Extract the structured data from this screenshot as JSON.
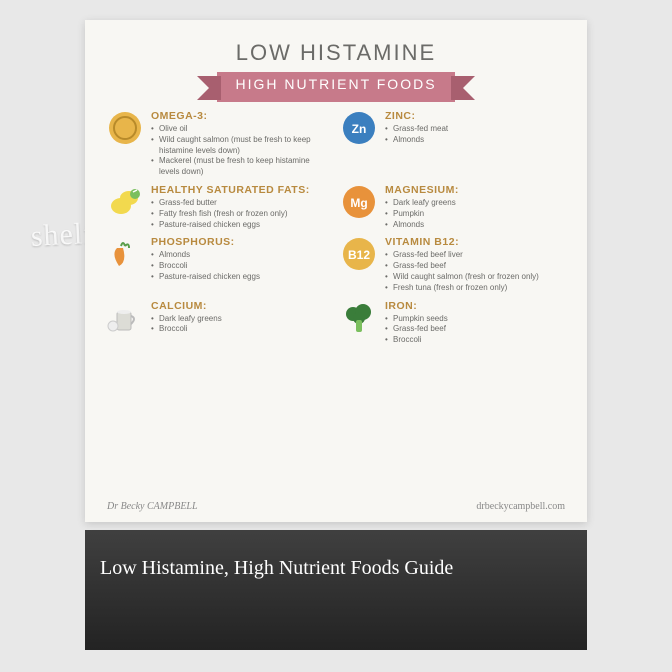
{
  "colors": {
    "page_bg": "#f8f7f3",
    "title_color": "#6b6b68",
    "banner_bg": "#c77a8a",
    "banner_fold": "#a85f6f",
    "section_title": "#b88a3f",
    "item_text": "#6b6b68",
    "accent": "#c77a8a"
  },
  "title": "LOW HISTAMINE",
  "banner": "HIGH NUTRIENT FOODS",
  "sections": [
    {
      "key": "omega3",
      "title": "OMEGA-3:",
      "icon": {
        "type": "coin",
        "bg": "#e8b54a",
        "label": ""
      },
      "items": [
        "Olive oil",
        "Wild caught salmon (must be fresh to keep histamine levels down)",
        "Mackerel (must be fresh to keep histamine levels down)"
      ]
    },
    {
      "key": "zinc",
      "title": "ZINC:",
      "icon": {
        "type": "circle",
        "bg": "#3b7fbf",
        "label": "Zn"
      },
      "items": [
        "Grass-fed meat",
        "Almonds"
      ]
    },
    {
      "key": "magnesium",
      "title": "MAGNESIUM:",
      "icon": {
        "type": "circle",
        "bg": "#e8923b",
        "label": "Mg"
      },
      "items": [
        "Dark leafy greens",
        "Pumpkin",
        "Almonds"
      ],
      "right": true
    },
    {
      "key": "fats",
      "title": "HEALTHY SATURATED FATS:",
      "icon": {
        "type": "lemon",
        "bg": "#f2d94e",
        "label": ""
      },
      "items": [
        "Grass-fed butter",
        "Fatty fresh fish (fresh or frozen only)",
        "Pasture-raised chicken eggs"
      ]
    },
    {
      "key": "b12",
      "title": "VITAMIN B12:",
      "icon": {
        "type": "circle",
        "bg": "#e8b54a",
        "label": "B12"
      },
      "items": [
        "Grass-fed beef liver",
        "Grass-fed beef",
        "Wild caught salmon (fresh or frozen only)",
        "Fresh tuna (fresh or frozen only)"
      ],
      "right": true
    },
    {
      "key": "phosphorus",
      "title": "PHOSPHORUS:",
      "icon": {
        "type": "carrot",
        "bg": "#e8923b",
        "label": ""
      },
      "items": [
        "Almonds",
        "Broccoli",
        "Pasture-raised chicken eggs"
      ]
    },
    {
      "key": "calcium",
      "title": "CALCIUM:",
      "icon": {
        "type": "jug",
        "bg": "#dcdcd6",
        "label": ""
      },
      "items": [
        "Dark leafy greens",
        "Broccoli"
      ]
    },
    {
      "key": "iron",
      "title": "IRON:",
      "icon": {
        "type": "broccoli",
        "bg": "#3a7d3a",
        "label": ""
      },
      "items": [
        "Pumpkin seeds",
        "Grass-fed beef",
        "Broccoli"
      ],
      "right": true
    }
  ],
  "footer": {
    "brand_prefix": "Dr",
    "brand_name": "Becky CAMPBELL",
    "url": "drbeckycampbell.com"
  },
  "shelf_label": "shelfari",
  "below_card_title": "Low Histamine, High Nutrient Foods Guide"
}
